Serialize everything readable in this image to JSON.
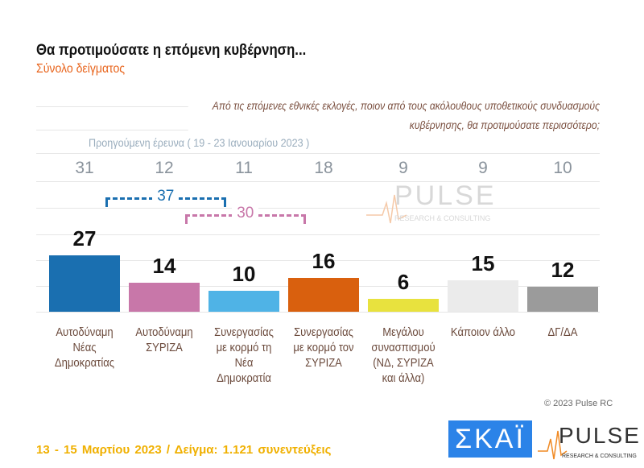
{
  "header": {
    "title": "Θα προτιμούσατε η επόμενη κυβέρνηση...",
    "subtitle": "Σύνολο δείγματος"
  },
  "question": "Από τις επόμενες εθνικές εκλογές, ποιον από τους ακόλουθους υποθετικούς συνδυασμούς κυβέρνησης, θα προτιμούσατε περισσότερο;",
  "previous_label": "Προηγούμενη έρευνα  ( 19 - 23 Ιανουαρίου  2023 )",
  "chart_data": {
    "type": "bar",
    "categories": [
      "Αυτοδύναμη Νέας Δημοκρατίας",
      "Αυτοδύναμη ΣΥΡΙΖΑ",
      "Συνεργασίας με κορμό τη Νέα Δημοκρατία",
      "Συνεργασίας με κορμό τον ΣΥΡΙΖΑ",
      "Μεγάλου συνασπισμού (ΝΔ, ΣΥΡΙΖΑ και άλλα)",
      "Κάποιον άλλο",
      "ΔΓ/ΔΑ"
    ],
    "values": [
      27,
      14,
      10,
      16,
      6,
      15,
      12
    ],
    "previous_values": [
      31,
      12,
      11,
      18,
      9,
      9,
      10
    ],
    "colors": [
      "#1a6fb0",
      "#c877a9",
      "#4fb3e6",
      "#d9600e",
      "#e8e23e",
      "#ebebeb",
      "#9b9b9b"
    ],
    "brackets": [
      {
        "label": "37",
        "from": 0,
        "to": 2,
        "color": "#1a6fb0"
      },
      {
        "label": "30",
        "from": 1,
        "to": 3,
        "color": "#c877a9"
      }
    ]
  },
  "copyright": "© 2023 Pulse RC",
  "footer": "13 - 15  Μαρτίου  2023  /  Δείγμα:  1.121 συνεντεύξεις",
  "logos": {
    "skai": "ΣΚΑΪ",
    "pulse": "PULSE",
    "pulse_sub": "RESEARCH & CONSULTING"
  }
}
